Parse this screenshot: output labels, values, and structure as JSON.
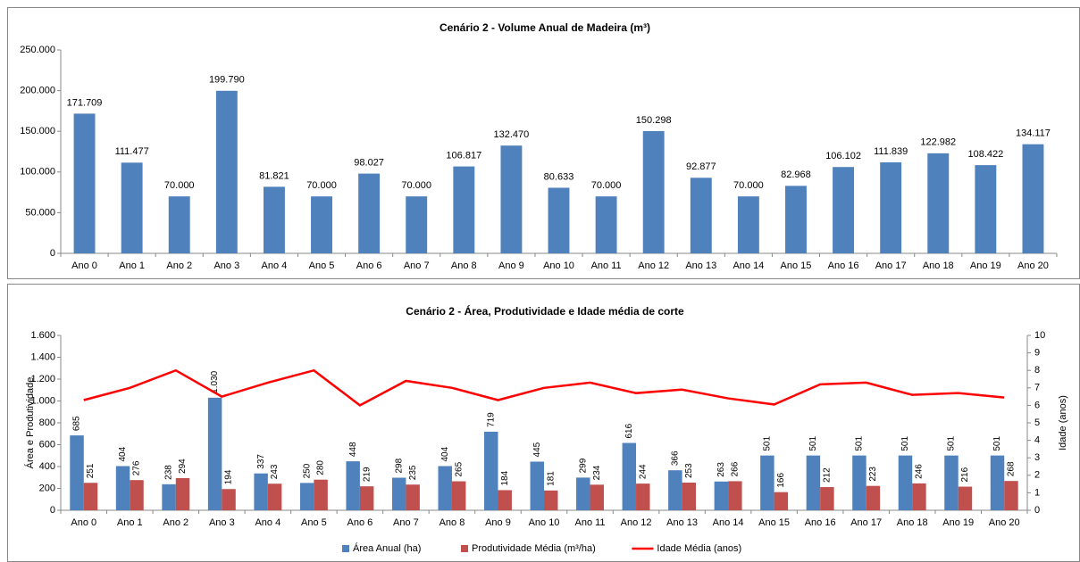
{
  "chart_data": [
    {
      "type": "bar",
      "title": "Cenário 2 - Volume Anual de Madeira (m³)",
      "categories": [
        "Ano 0",
        "Ano 1",
        "Ano 2",
        "Ano 3",
        "Ano 4",
        "Ano 5",
        "Ano 6",
        "Ano 7",
        "Ano 8",
        "Ano 9",
        "Ano 10",
        "Ano 11",
        "Ano 12",
        "Ano 13",
        "Ano 14",
        "Ano 15",
        "Ano 16",
        "Ano 17",
        "Ano 18",
        "Ano 19",
        "Ano 20"
      ],
      "values": [
        171709,
        111477,
        70000,
        199790,
        81821,
        70000,
        98027,
        70000,
        106817,
        132470,
        80633,
        70000,
        150298,
        92877,
        70000,
        82968,
        106102,
        111839,
        122982,
        108422,
        134117
      ],
      "value_labels": [
        "171.709",
        "111.477",
        "70.000",
        "199.790",
        "81.821",
        "70.000",
        "98.027",
        "70.000",
        "106.817",
        "132.470",
        "80.633",
        "70.000",
        "150.298",
        "92.877",
        "70.000",
        "82.968",
        "106.102",
        "111.839",
        "122.982",
        "108.422",
        "134.117"
      ],
      "color": "#4f81bd",
      "ylim": [
        0,
        250000
      ],
      "yticks": [
        0,
        {
          "value": 50000,
          "label": "50.000"
        },
        {
          "value": 100000,
          "label": "100.000"
        },
        {
          "value": 150000,
          "label": "150.000"
        },
        {
          "value": 200000,
          "label": "200.000"
        },
        {
          "value": 250000,
          "label": "250.000"
        }
      ],
      "grid": false
    },
    {
      "type": "bar",
      "title": "Cenário 2 - Área, Produtividade e Idade média de corte",
      "y_label": "Área e Produtividade",
      "y2_label": "Idade (anos)",
      "categories": [
        "Ano 0",
        "Ano 1",
        "Ano 2",
        "Ano 3",
        "Ano 4",
        "Ano 5",
        "Ano 6",
        "Ano 7",
        "Ano 8",
        "Ano 9",
        "Ano 10",
        "Ano 11",
        "Ano 12",
        "Ano 13",
        "Ano 14",
        "Ano 15",
        "Ano 16",
        "Ano 17",
        "Ano 18",
        "Ano 19",
        "Ano 20"
      ],
      "series": [
        {
          "name": "Área Anual (ha)",
          "color": "#4f81bd",
          "type": "bar",
          "values": [
            685,
            404,
            238,
            1030,
            337,
            250,
            448,
            298,
            404,
            719,
            445,
            299,
            616,
            366,
            263,
            501,
            501,
            501,
            501,
            501,
            501
          ],
          "value_labels": [
            "685",
            "404",
            "238",
            "1.030",
            "337",
            "250",
            "448",
            "298",
            "404",
            "719",
            "445",
            "299",
            "616",
            "366",
            "263",
            "501",
            "501",
            "501",
            "501",
            "501",
            "501"
          ]
        },
        {
          "name": "Produtividade Média (m³/ha)",
          "color": "#c0504d",
          "type": "bar",
          "values": [
            251,
            276,
            294,
            194,
            243,
            280,
            219,
            235,
            265,
            184,
            181,
            234,
            244,
            253,
            266,
            166,
            212,
            223,
            246,
            216,
            268
          ]
        },
        {
          "name": "Idade Média (anos)",
          "color": "#ff0000",
          "type": "line",
          "axis": "y2",
          "values": [
            6.3,
            7.0,
            8.0,
            6.5,
            7.3,
            8.0,
            6.0,
            7.4,
            7.0,
            6.3,
            7.0,
            7.3,
            6.7,
            6.9,
            6.4,
            6.05,
            7.2,
            7.3,
            6.6,
            6.7,
            6.45
          ]
        }
      ],
      "ylim": [
        0,
        1600
      ],
      "yticks": [
        0,
        200,
        400,
        600,
        800,
        {
          "value": 1000,
          "label": "1.000"
        },
        {
          "value": 1200,
          "label": "1.200"
        },
        {
          "value": 1400,
          "label": "1.400"
        },
        {
          "value": 1600,
          "label": "1.600"
        }
      ],
      "y2lim": [
        0,
        10
      ],
      "y2ticks": [
        0,
        1,
        2,
        3,
        4,
        5,
        6,
        7,
        8,
        9,
        10
      ],
      "grid": false,
      "legend": "bottom"
    }
  ]
}
